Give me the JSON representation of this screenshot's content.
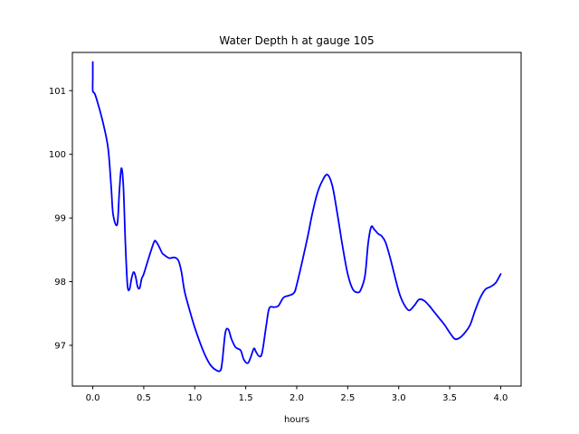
{
  "chart_data": {
    "type": "line",
    "title": "Water Depth h at gauge 105",
    "xlabel": "hours",
    "ylabel": "",
    "xlim": [
      -0.2,
      4.2
    ],
    "ylim": [
      96.36,
      101.6
    ],
    "grid": false,
    "legend": "none",
    "xticks": [
      0.0,
      0.5,
      1.0,
      1.5,
      2.0,
      2.5,
      3.0,
      3.5,
      4.0
    ],
    "xtick_labels": [
      "0.0",
      "0.5",
      "1.0",
      "1.5",
      "2.0",
      "2.5",
      "3.0",
      "3.5",
      "4.0"
    ],
    "yticks": [
      97,
      98,
      99,
      100,
      101
    ],
    "ytick_labels": [
      "97",
      "98",
      "99",
      "100",
      "101"
    ],
    "series": [
      {
        "color": "#0000ff",
        "x": [
          0.0,
          0.0,
          0.0,
          0.02,
          0.05,
          0.1,
          0.15,
          0.18,
          0.2,
          0.24,
          0.26,
          0.28,
          0.3,
          0.32,
          0.34,
          0.36,
          0.38,
          0.4,
          0.42,
          0.44,
          0.46,
          0.48,
          0.5,
          0.55,
          0.6,
          0.62,
          0.65,
          0.68,
          0.7,
          0.75,
          0.8,
          0.84,
          0.87,
          0.9,
          0.95,
          1.0,
          1.05,
          1.1,
          1.15,
          1.2,
          1.25,
          1.27,
          1.3,
          1.33,
          1.36,
          1.4,
          1.45,
          1.48,
          1.52,
          1.55,
          1.58,
          1.6,
          1.63,
          1.66,
          1.7,
          1.73,
          1.78,
          1.82,
          1.87,
          1.92,
          1.97,
          2.0,
          2.1,
          2.15,
          2.2,
          2.25,
          2.3,
          2.35,
          2.4,
          2.45,
          2.5,
          2.55,
          2.6,
          2.63,
          2.67,
          2.7,
          2.73,
          2.76,
          2.8,
          2.83,
          2.87,
          2.92,
          3.0,
          3.05,
          3.1,
          3.15,
          3.2,
          3.25,
          3.3,
          3.35,
          3.4,
          3.45,
          3.5,
          3.55,
          3.6,
          3.65,
          3.7,
          3.75,
          3.8,
          3.85,
          3.9,
          3.95,
          4.0
        ],
        "y": [
          101.45,
          101.2,
          101.0,
          100.95,
          100.8,
          100.5,
          100.1,
          99.5,
          99.05,
          98.9,
          99.4,
          99.78,
          99.5,
          98.6,
          97.95,
          97.88,
          98.05,
          98.15,
          98.08,
          97.92,
          97.9,
          98.05,
          98.12,
          98.38,
          98.62,
          98.63,
          98.55,
          98.45,
          98.42,
          98.37,
          98.38,
          98.33,
          98.15,
          97.85,
          97.55,
          97.28,
          97.05,
          96.85,
          96.7,
          96.62,
          96.6,
          96.75,
          97.2,
          97.25,
          97.1,
          96.97,
          96.92,
          96.78,
          96.72,
          96.82,
          96.95,
          96.9,
          96.83,
          96.88,
          97.3,
          97.58,
          97.6,
          97.62,
          97.75,
          97.78,
          97.82,
          97.95,
          98.65,
          99.05,
          99.38,
          99.58,
          99.68,
          99.5,
          99.05,
          98.55,
          98.12,
          97.88,
          97.83,
          97.88,
          98.1,
          98.6,
          98.86,
          98.82,
          98.75,
          98.72,
          98.62,
          98.35,
          97.85,
          97.65,
          97.55,
          97.62,
          97.72,
          97.7,
          97.62,
          97.52,
          97.42,
          97.32,
          97.2,
          97.1,
          97.12,
          97.2,
          97.32,
          97.55,
          97.75,
          97.88,
          97.92,
          97.98,
          98.12
        ]
      }
    ]
  }
}
